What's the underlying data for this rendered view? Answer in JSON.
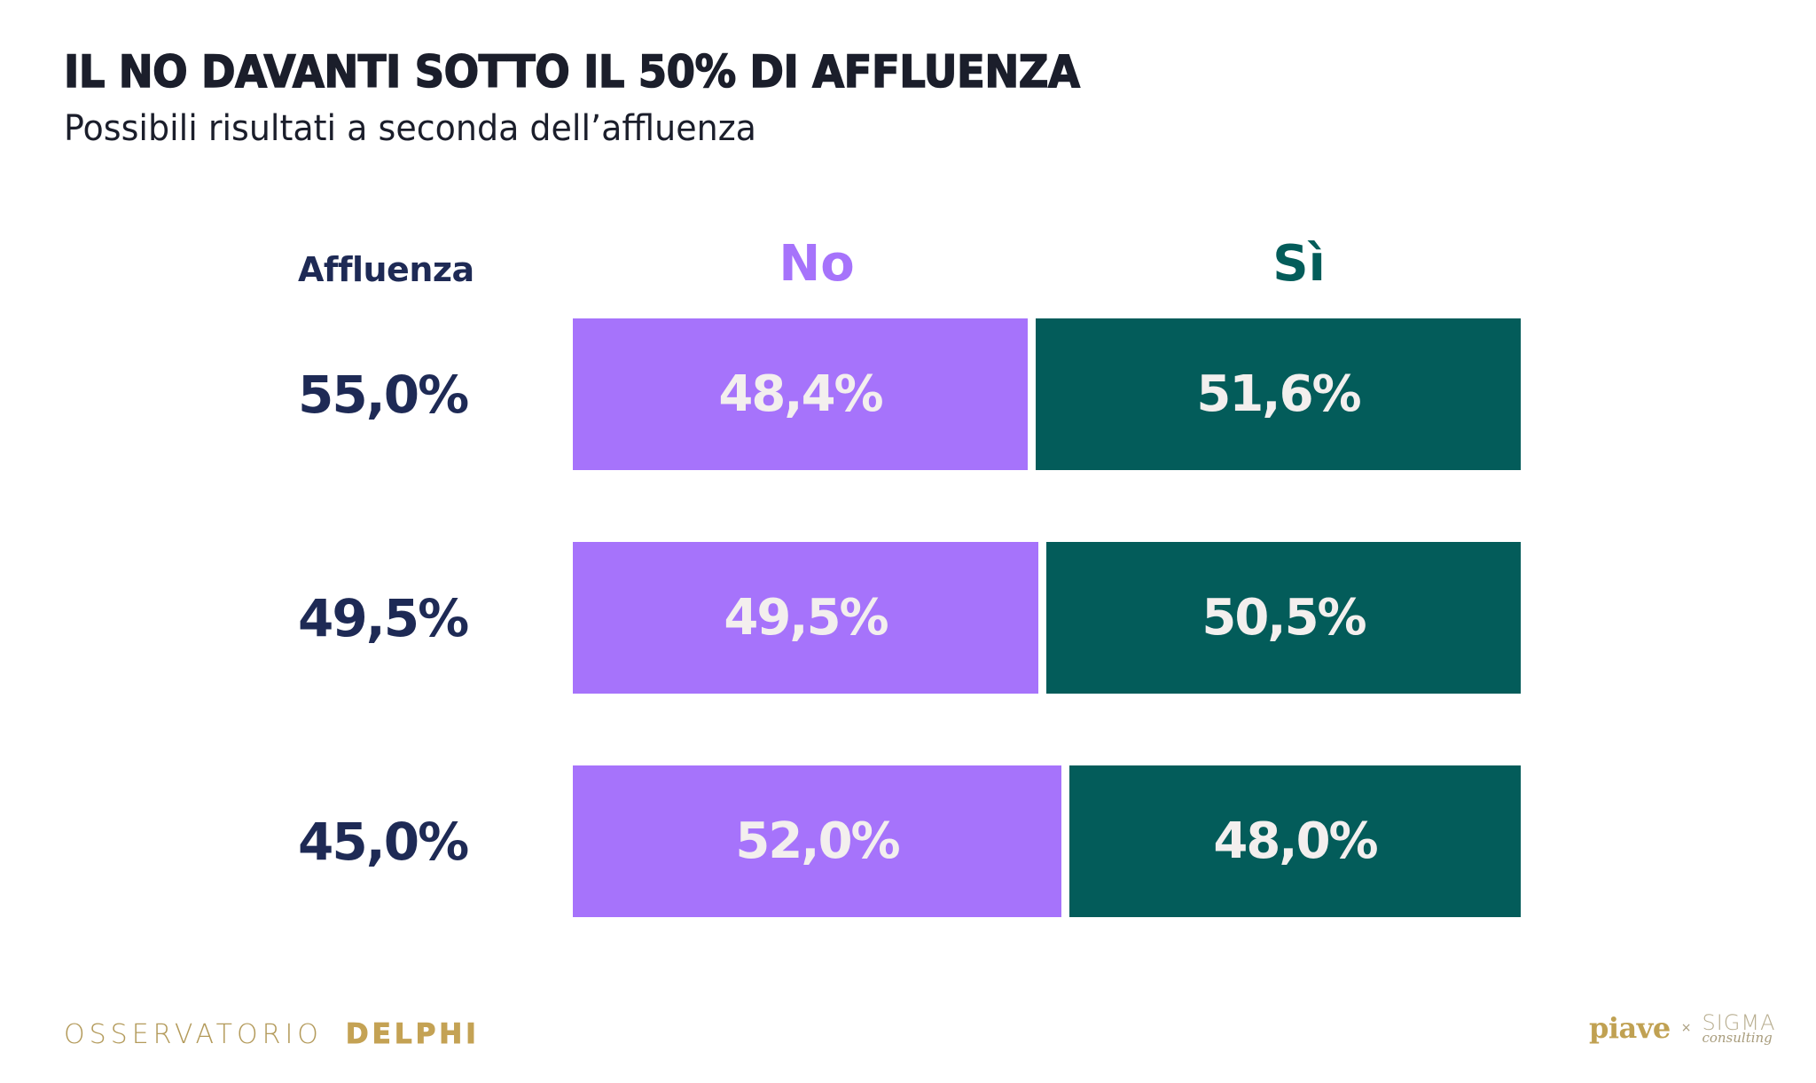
{
  "header": {
    "title": "IL NO DAVANTI SOTTO IL 50% DI AFFLUENZA",
    "subtitle": "Possibili risultati a seconda dell’affluenza"
  },
  "columns": {
    "turnout_label": "Affluenza",
    "no_label": "No",
    "si_label": "Sì"
  },
  "colors": {
    "no": "#a673fb",
    "si": "#035c5a",
    "label": "#1e2a55",
    "bar_text": "#f3efee"
  },
  "chart_data": {
    "type": "bar",
    "orientation": "horizontal-stacked-100",
    "title": "IL NO DAVANTI SOTTO IL 50% DI AFFLUENZA",
    "subtitle": "Possibili risultati a seconda dell’affluenza",
    "xlabel": "",
    "ylabel": "Affluenza",
    "categories": [
      "55,0%",
      "49,5%",
      "45,0%"
    ],
    "turnout": [
      55.0,
      49.5,
      45.0
    ],
    "series": [
      {
        "name": "No",
        "values": [
          48.4,
          49.5,
          52.0
        ],
        "labels": [
          "48,4%",
          "49,5%",
          "52,0%"
        ],
        "color": "#a673fb"
      },
      {
        "name": "Sì",
        "values": [
          51.6,
          50.5,
          48.0
        ],
        "labels": [
          "51,6%",
          "50,5%",
          "48,0%"
        ],
        "color": "#035c5a"
      }
    ],
    "xlim": [
      0,
      100
    ],
    "grid": false,
    "legend": "top (column headers)"
  },
  "footer": {
    "brand_left_light": "OSSERVATORIO",
    "brand_left_bold": "DELPHI",
    "brand_right_1": "piave",
    "brand_right_sep": "×",
    "brand_right_2_top": "SIGMA",
    "brand_right_2_bottom": "consulting"
  }
}
